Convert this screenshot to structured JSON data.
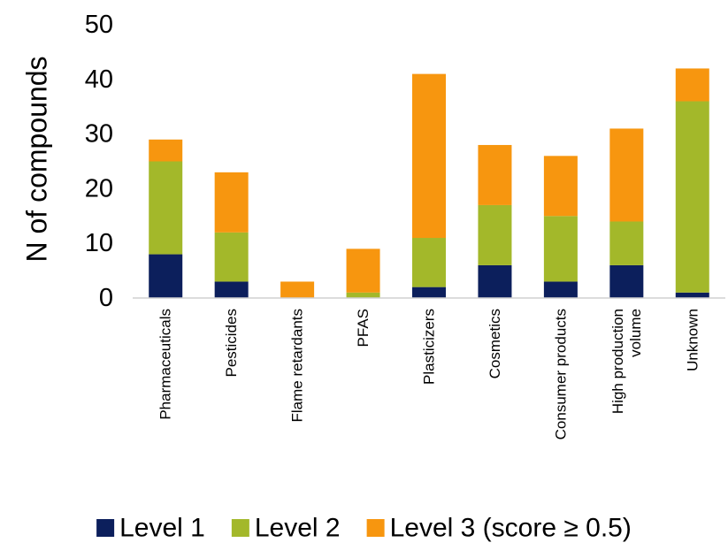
{
  "chart_data": {
    "type": "bar",
    "stacked": true,
    "title": "",
    "xlabel": "",
    "ylabel": "N of compounds",
    "ylim": [
      0,
      50
    ],
    "yticks": [
      0,
      10,
      20,
      30,
      40,
      50
    ],
    "grid": false,
    "legend_position": "bottom",
    "categories": [
      [
        "Pharmaceuticals"
      ],
      [
        "Pesticides"
      ],
      [
        "Flame retardants"
      ],
      [
        "PFAS"
      ],
      [
        "Plasticizers"
      ],
      [
        "Cosmetics"
      ],
      [
        "Consumer products"
      ],
      [
        "High production",
        "volume"
      ],
      [
        "Unknown"
      ]
    ],
    "series": [
      {
        "name": "Level 1",
        "color": "#0c1f5c",
        "values": [
          8,
          3,
          0,
          0,
          2,
          6,
          3,
          6,
          1
        ]
      },
      {
        "name": "Level 2",
        "color": "#a3b82a",
        "values": [
          17,
          9,
          0,
          1,
          9,
          11,
          12,
          8,
          35
        ]
      },
      {
        "name": "Level 3 (score ≥ 0.5)",
        "color": "#f7960f",
        "values": [
          4,
          11,
          3,
          8,
          30,
          11,
          11,
          17,
          6
        ]
      }
    ]
  }
}
